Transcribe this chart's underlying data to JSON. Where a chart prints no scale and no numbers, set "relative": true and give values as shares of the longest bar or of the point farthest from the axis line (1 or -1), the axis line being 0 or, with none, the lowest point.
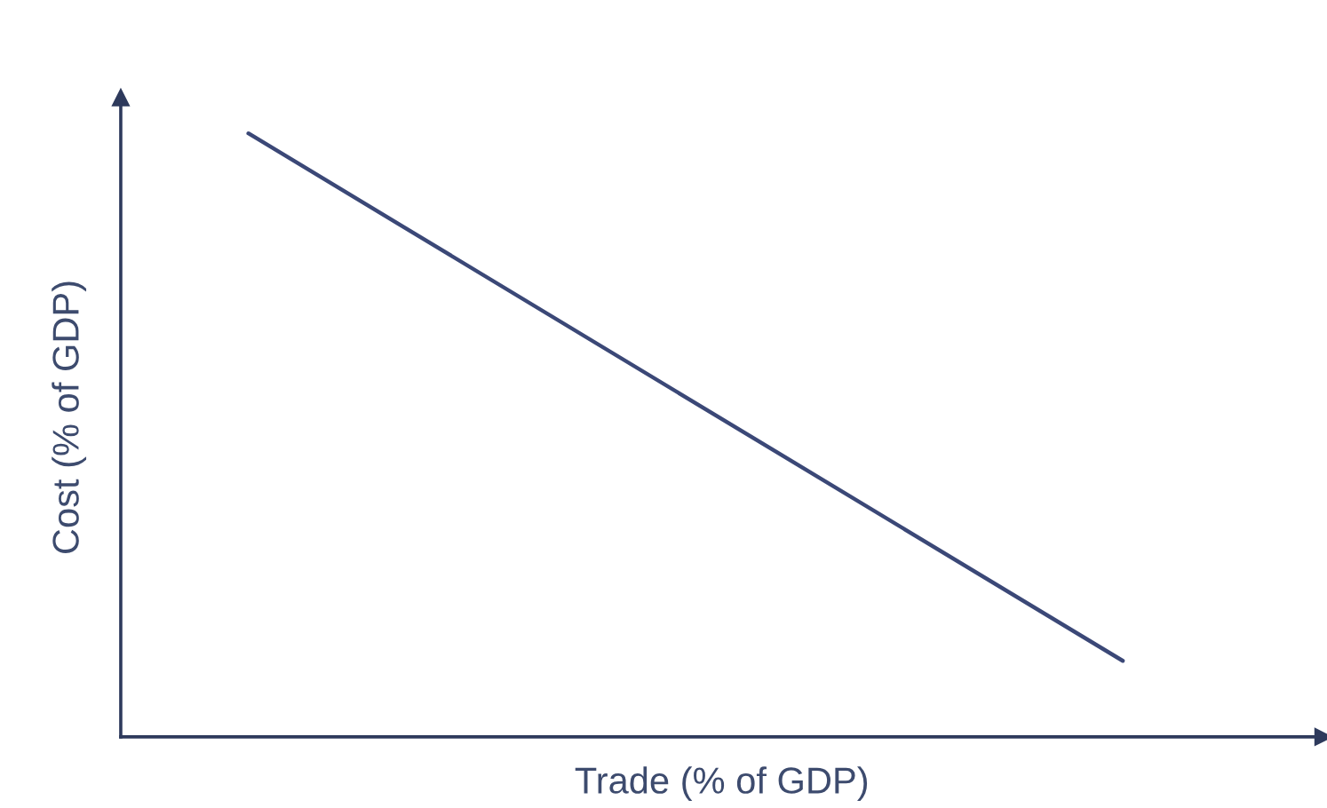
{
  "chart_data": {
    "type": "line",
    "relative": true,
    "xlabel": "Trade (% of GDP)",
    "ylabel": "Cost (% of GDP)",
    "categories": [
      null,
      null
    ],
    "tick_labels": false,
    "marker": "none",
    "line_style": "solid",
    "series": [
      {
        "color": "#3b4877",
        "values": [
          1,
          0.126
        ]
      }
    ]
  }
}
